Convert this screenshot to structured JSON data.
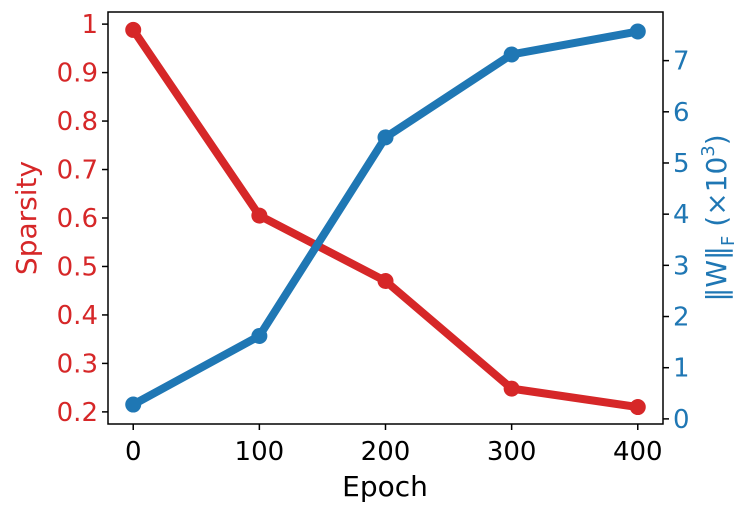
{
  "chart_data": {
    "type": "line",
    "title": "",
    "xlabel": "Epoch",
    "x": [
      0,
      100,
      200,
      300,
      400
    ],
    "xlim": [
      -20,
      420
    ],
    "xticks": [
      0,
      100,
      200,
      300,
      400
    ],
    "xtick_labels": [
      "0",
      "100",
      "200",
      "300",
      "400"
    ],
    "y_left": {
      "label": "Sparsity",
      "color": "#d62728",
      "ylim": [
        0.175,
        1.025
      ],
      "ticks": [
        0.2,
        0.3,
        0.4,
        0.5,
        0.6,
        0.7,
        0.8,
        0.9,
        1.0
      ],
      "tick_labels": [
        "0.2",
        "0.3",
        "0.4",
        "0.5",
        "0.6",
        "0.7",
        "0.8",
        "0.9",
        "1"
      ]
    },
    "y_right": {
      "label_base": "‖W‖",
      "label_subscript": "F",
      "label_scale": " (×10",
      "label_exponent": "3",
      "label_close": ")",
      "color": "#1f77b4",
      "ylim": [
        -0.1,
        7.95
      ],
      "ticks": [
        0,
        1,
        2,
        3,
        4,
        5,
        6,
        7
      ],
      "tick_labels": [
        "0",
        "1",
        "2",
        "3",
        "4",
        "5",
        "6",
        "7"
      ]
    },
    "series": [
      {
        "axis": "left",
        "color": "#d62728",
        "values": [
          0.988,
          0.605,
          0.47,
          0.248,
          0.21
        ]
      },
      {
        "axis": "right",
        "color": "#1f77b4",
        "values": [
          0.28,
          1.62,
          5.5,
          7.12,
          7.57
        ]
      }
    ],
    "grid": false,
    "legend": "none"
  }
}
